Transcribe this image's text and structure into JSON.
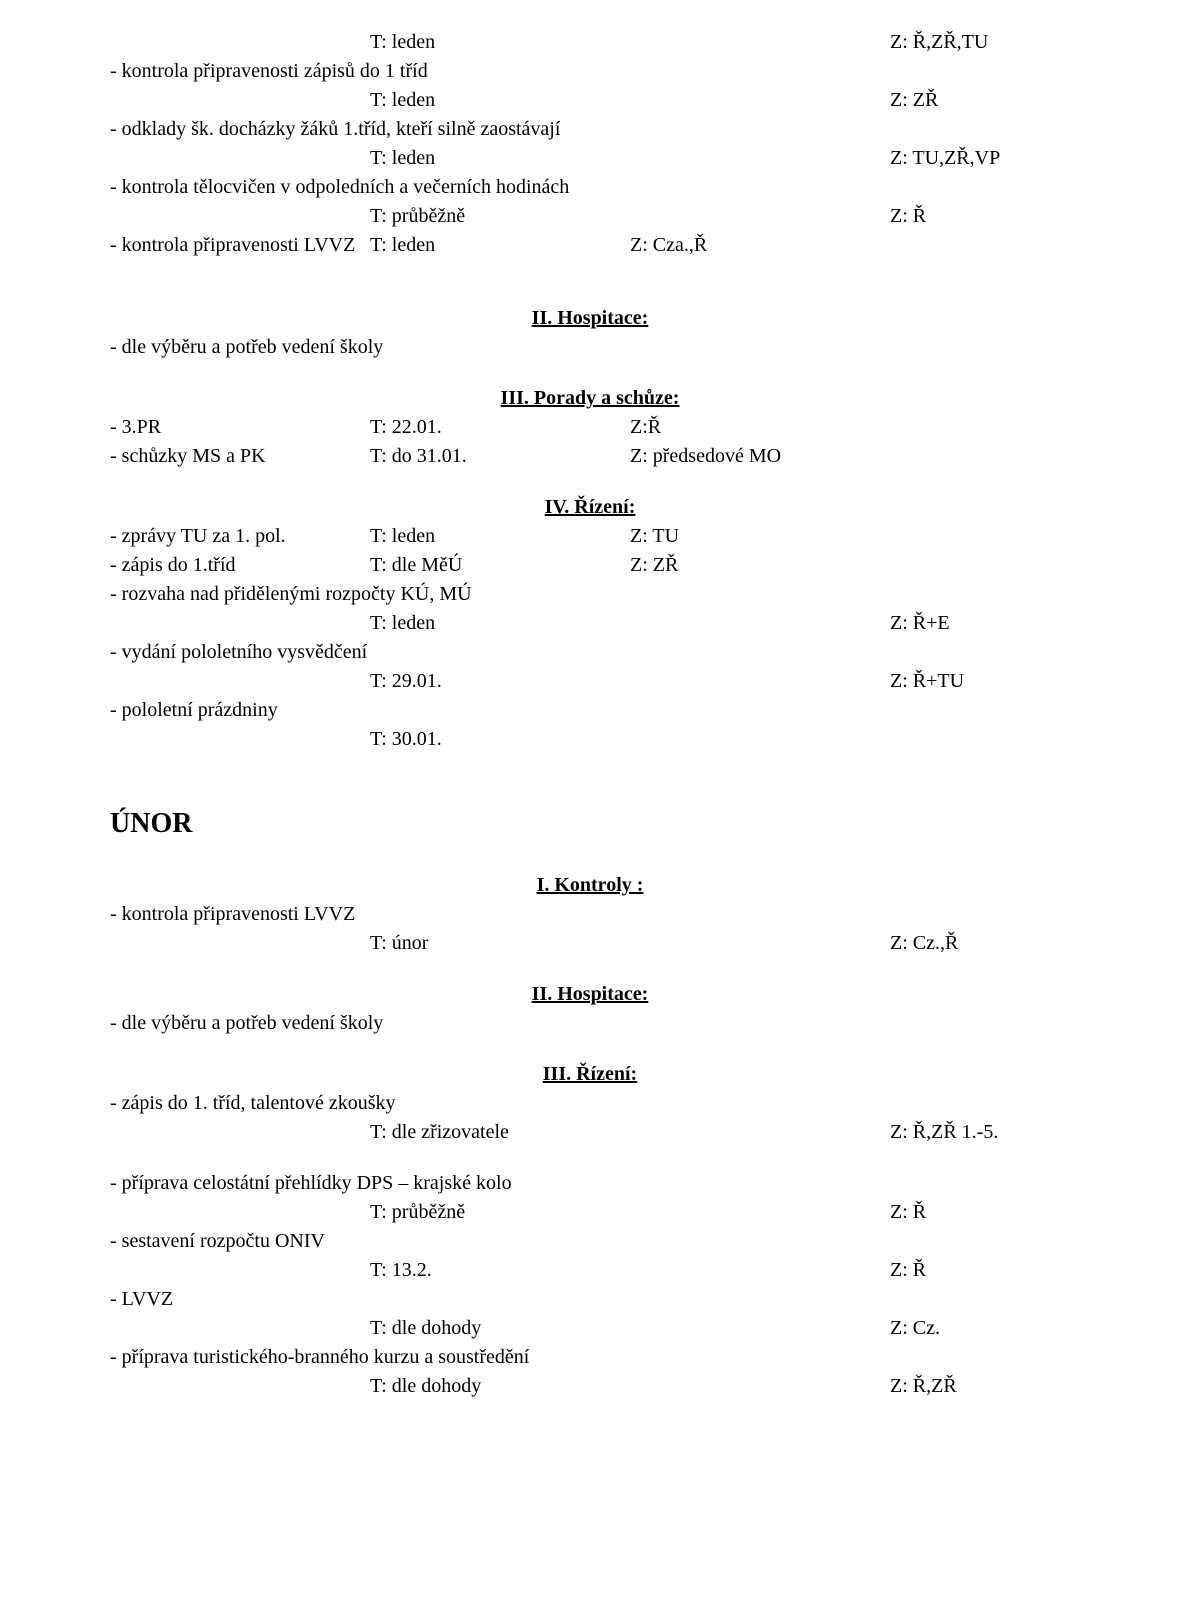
{
  "top": {
    "l1_t": "T: leden",
    "l1_z": "Z: Ř,ZŘ,TU",
    "item1": "- kontrola připravenosti zápisů do 1 tříd",
    "l2_t": "T: leden",
    "l2_z": "Z: ZŘ",
    "item2": "- odklady šk. docházky žáků 1.tříd, kteří silně zaostávají",
    "l3_t": "T: leden",
    "l3_z": "Z: TU,ZŘ,VP",
    "item3": "- kontrola tělocvičen v odpoledních a večerních hodinách",
    "l4_t": "T: průběžně",
    "l4_z": "Z: Ř",
    "item4_left": "- kontrola připravenosti LVVZ",
    "l5_t": "T: leden",
    "l5_z": "Z: Cza.,Ř"
  },
  "hosp": {
    "heading": "II. Hospitace:",
    "line": "- dle výběru a potřeb vedení školy"
  },
  "porady": {
    "heading": "III. Porady a schůze:",
    "r1_left": "- 3.PR",
    "r1_t": "T: 22.01.",
    "r1_z": "Z:Ř",
    "r2_left": "- schůzky MS a PK",
    "r2_t": "T: do 31.01.",
    "r2_z": "Z: předsedové MO"
  },
  "rizeni": {
    "heading": "IV. Řízení:",
    "r1_left": "- zprávy TU za 1. pol.",
    "r1_t": "T: leden",
    "r1_z": "Z: TU",
    "r2_left": "- zápis do 1.tříd",
    "r2_t": "T: dle MěÚ",
    "r2_z": "Z: ZŘ",
    "r3_line": "- rozvaha nad přidělenými rozpočty KÚ, MÚ",
    "r3_t": "T: leden",
    "r3_z": "Z: Ř+E",
    "r4_line": "- vydání pololetního vysvědčení",
    "r4_t": "T: 29.01.",
    "r4_z": "Z: Ř+TU",
    "r5_line": "- pololetní prázdniny",
    "r5_t": "T: 30.01."
  },
  "unor": {
    "title": "ÚNOR",
    "kontroly_heading": "I. Kontroly :",
    "k1_line": "- kontrola připravenosti LVVZ",
    "k1_t": "T: únor",
    "k1_z": "Z: Cz.,Ř",
    "hosp_heading": "II. Hospitace:",
    "hosp_line": "- dle výběru a potřeb vedení školy",
    "riz_heading": "III. Řízení:",
    "riz1_line": "- zápis do 1. tříd, talentové zkoušky",
    "riz1_t": "T: dle zřizovatele",
    "riz1_z": "Z: Ř,ZŘ 1.-5.",
    "riz2_line": "- příprava celostátní přehlídky DPS – krajské kolo",
    "riz2_t": "T: průběžně",
    "riz2_z": "Z: Ř",
    "riz3_line": "- sestavení rozpočtu ONIV",
    "riz3_t": "T: 13.2.",
    "riz3_z": "Z: Ř",
    "riz4_line": "- LVVZ",
    "riz4_t": "T: dle dohody",
    "riz4_z": "Z: Cz.",
    "riz5_line": "- příprava turistického-branného kurzu a soustředění",
    "riz5_t": "T: dle dohody",
    "riz5_z": "Z: Ř,ZŘ"
  }
}
